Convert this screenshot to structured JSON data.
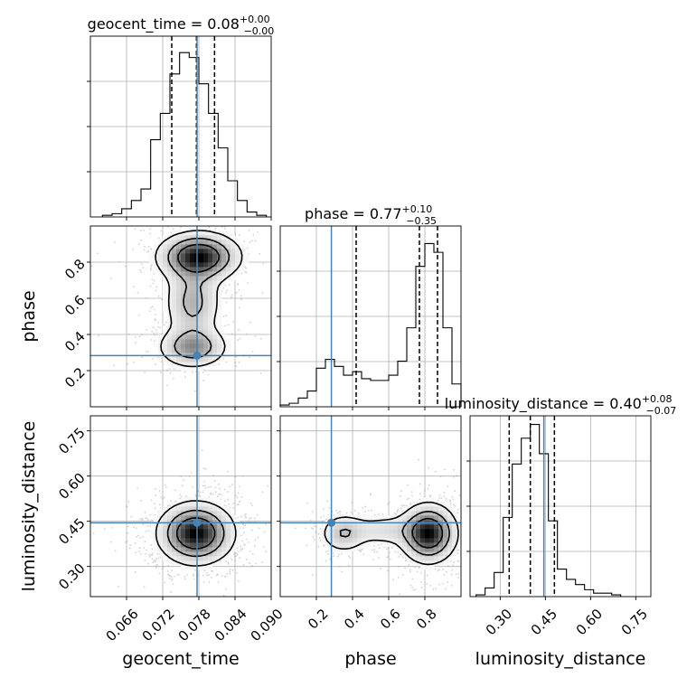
{
  "chart_data": {
    "type": "corner",
    "parameters": [
      "geocent_time",
      "phase",
      "luminosity_distance"
    ],
    "axis_labels": [
      "geocent_time",
      "phase",
      "luminosity_distance"
    ],
    "truths": [
      0.0777,
      0.283,
      0.445
    ],
    "truth_color": "#4682b4",
    "ranges": [
      [
        0.06,
        0.09
      ],
      [
        0.0,
        1.0
      ],
      [
        0.2,
        0.8
      ]
    ],
    "ticks": [
      [
        0.066,
        0.072,
        0.078,
        0.084,
        0.09
      ],
      [
        0.2,
        0.4,
        0.6,
        0.8
      ],
      [
        0.3,
        0.45,
        0.6,
        0.75
      ]
    ],
    "tick_labels": [
      [
        "0.066",
        "0.072",
        "0.078",
        "0.084",
        "0.090"
      ],
      [
        "0.2",
        "0.4",
        "0.6",
        "0.8"
      ],
      [
        "0.30",
        "0.45",
        "0.60",
        "0.75"
      ]
    ],
    "grid": true,
    "titles": [
      {
        "param": "geocent_time",
        "prefix": "geocent_time = ",
        "median": "0.08",
        "plus": "+0.00",
        "minus": "−0.00"
      },
      {
        "param": "phase",
        "prefix": "phase = ",
        "median": "0.77",
        "plus": "+0.10",
        "minus": "−0.35"
      },
      {
        "param": "luminosity_distance",
        "prefix": "luminosity_distance = ",
        "median": "0.40",
        "plus": "+0.08",
        "minus": "−0.07"
      }
    ],
    "quantiles": [
      [
        0.0735,
        0.0776,
        0.0806
      ],
      [
        0.42,
        0.77,
        0.87
      ],
      [
        0.33,
        0.4,
        0.48
      ]
    ],
    "histograms": [
      {
        "param": "geocent_time",
        "bin_edges": [
          0.062,
          0.0636,
          0.0652,
          0.0668,
          0.0684,
          0.07,
          0.0716,
          0.0732,
          0.0748,
          0.0764,
          0.078,
          0.0796,
          0.0812,
          0.0828,
          0.0844,
          0.086,
          0.0876,
          0.0892
        ],
        "counts": [
          0.01,
          0.02,
          0.05,
          0.1,
          0.17,
          0.47,
          0.63,
          0.87,
          1.0,
          0.97,
          0.81,
          0.63,
          0.42,
          0.22,
          0.1,
          0.03,
          0.01
        ],
        "ymax": 1.1
      },
      {
        "param": "phase",
        "bin_edges": [
          0.0,
          0.05,
          0.1,
          0.15,
          0.2,
          0.25,
          0.3,
          0.35,
          0.4,
          0.45,
          0.5,
          0.55,
          0.6,
          0.65,
          0.7,
          0.75,
          0.8,
          0.85,
          0.9,
          0.95,
          1.0
        ],
        "counts": [
          0.01,
          0.02,
          0.05,
          0.09,
          0.22,
          0.27,
          0.23,
          0.18,
          0.2,
          0.16,
          0.15,
          0.15,
          0.18,
          0.26,
          0.45,
          0.8,
          0.93,
          0.88,
          0.45,
          0.13
        ],
        "ymax": 1.03
      },
      {
        "param": "luminosity_distance",
        "bin_edges": [
          0.22,
          0.25,
          0.28,
          0.31,
          0.34,
          0.37,
          0.4,
          0.43,
          0.46,
          0.49,
          0.52,
          0.55,
          0.58,
          0.61,
          0.64,
          0.67,
          0.7
        ],
        "counts": [
          0.01,
          0.05,
          0.14,
          0.46,
          0.77,
          0.92,
          1.0,
          0.83,
          0.44,
          0.16,
          0.1,
          0.07,
          0.04,
          0.02,
          0.02,
          0.01
        ],
        "ymax": 1.05
      }
    ],
    "contour_panels": [
      {
        "x": "geocent_time",
        "y": "phase",
        "modes": [
          {
            "center": [
              0.078,
              0.83
            ],
            "spread": [
              0.0035,
              0.07
            ],
            "weight": 0.8
          },
          {
            "center": [
              0.077,
              0.33
            ],
            "spread": [
              0.003,
              0.06
            ],
            "weight": 0.45
          },
          {
            "center": [
              0.077,
              0.58
            ],
            "spread": [
              0.0025,
              0.12
            ],
            "weight": 0.35
          }
        ]
      },
      {
        "x": "geocent_time",
        "y": "luminosity_distance",
        "modes": [
          {
            "center": [
              0.0775,
              0.41
            ],
            "spread": [
              0.0032,
              0.052
            ],
            "weight": 1.0
          }
        ]
      },
      {
        "x": "phase",
        "y": "luminosity_distance",
        "modes": [
          {
            "center": [
              0.82,
              0.41
            ],
            "spread": [
              0.08,
              0.05
            ],
            "weight": 1.0
          },
          {
            "center": [
              0.35,
              0.41
            ],
            "spread": [
              0.07,
              0.035
            ],
            "weight": 0.35
          },
          {
            "center": [
              0.58,
              0.42
            ],
            "spread": [
              0.12,
              0.03
            ],
            "weight": 0.22
          }
        ]
      }
    ]
  }
}
